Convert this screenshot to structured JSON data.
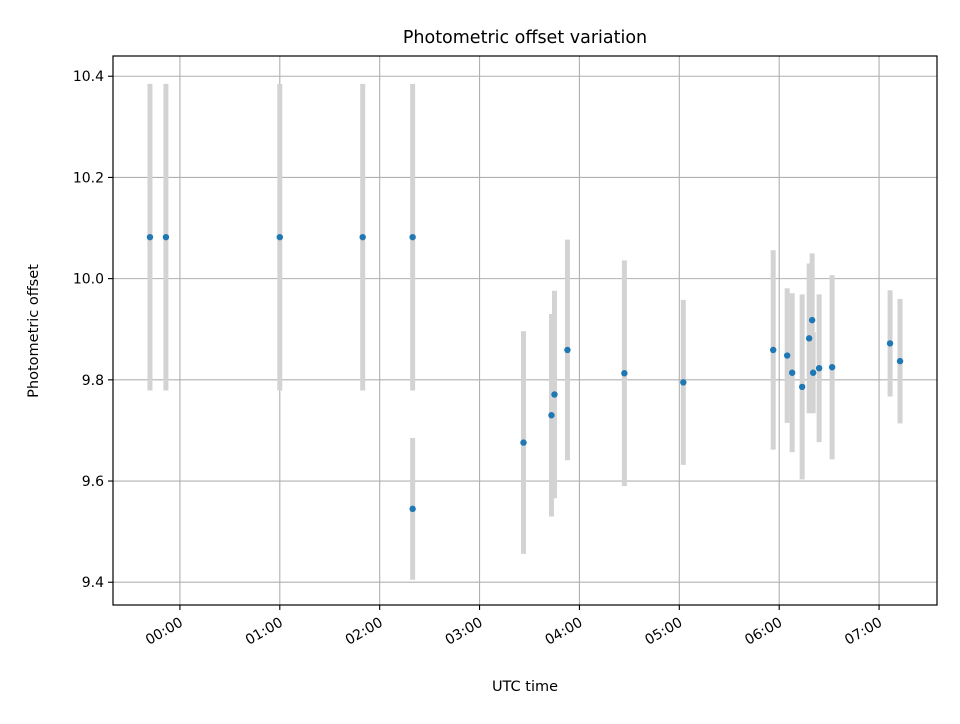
{
  "chart_data": {
    "type": "scatter",
    "title": "Photometric offset variation",
    "xlabel": "UTC time",
    "ylabel": "Photometric offset",
    "grid": true,
    "xlim_hours": [
      -0.67,
      7.58
    ],
    "ylim": [
      9.355,
      10.44
    ],
    "x_ticks": [
      {
        "value": 0,
        "label": "00:00"
      },
      {
        "value": 1,
        "label": "01:00"
      },
      {
        "value": 2,
        "label": "02:00"
      },
      {
        "value": 3,
        "label": "03:00"
      },
      {
        "value": 4,
        "label": "04:00"
      },
      {
        "value": 5,
        "label": "05:00"
      },
      {
        "value": 6,
        "label": "06:00"
      },
      {
        "value": 7,
        "label": "07:00"
      }
    ],
    "y_ticks": [
      {
        "value": 9.4,
        "label": "9.4"
      },
      {
        "value": 9.6,
        "label": "9.6"
      },
      {
        "value": 9.8,
        "label": "9.8"
      },
      {
        "value": 10.0,
        "label": "10.0"
      },
      {
        "value": 10.2,
        "label": "10.2"
      },
      {
        "value": 10.4,
        "label": "10.4"
      }
    ],
    "series": [
      {
        "name": "offset",
        "marker_color": "#1f77b4",
        "errorbar_color": "#d3d3d3",
        "points": [
          {
            "x": -0.3,
            "y": 10.082,
            "err": 0.303
          },
          {
            "x": -0.14,
            "y": 10.082,
            "err": 0.303
          },
          {
            "x": 1.0,
            "y": 10.082,
            "err": 0.303
          },
          {
            "x": 1.83,
            "y": 10.082,
            "err": 0.303
          },
          {
            "x": 2.33,
            "y": 10.082,
            "err": 0.303
          },
          {
            "x": 2.33,
            "y": 9.545,
            "err": 0.14
          },
          {
            "x": 3.44,
            "y": 9.676,
            "err": 0.22
          },
          {
            "x": 3.72,
            "y": 9.73,
            "err": 0.2
          },
          {
            "x": 3.75,
            "y": 9.771,
            "err": 0.205
          },
          {
            "x": 3.88,
            "y": 9.859,
            "err": 0.218
          },
          {
            "x": 4.45,
            "y": 9.813,
            "err": 0.223
          },
          {
            "x": 5.04,
            "y": 9.795,
            "err": 0.163
          },
          {
            "x": 5.94,
            "y": 9.859,
            "err": 0.197
          },
          {
            "x": 6.08,
            "y": 9.848,
            "err": 0.133
          },
          {
            "x": 6.13,
            "y": 9.814,
            "err": 0.157
          },
          {
            "x": 6.23,
            "y": 9.786,
            "err": 0.183
          },
          {
            "x": 6.3,
            "y": 9.882,
            "err": 0.148
          },
          {
            "x": 6.33,
            "y": 9.918,
            "err": 0.132
          },
          {
            "x": 6.34,
            "y": 9.814,
            "err": 0.08
          },
          {
            "x": 6.4,
            "y": 9.823,
            "err": 0.146
          },
          {
            "x": 6.53,
            "y": 9.825,
            "err": 0.182
          },
          {
            "x": 7.11,
            "y": 9.872,
            "err": 0.105
          },
          {
            "x": 7.21,
            "y": 9.837,
            "err": 0.123
          }
        ]
      }
    ]
  }
}
